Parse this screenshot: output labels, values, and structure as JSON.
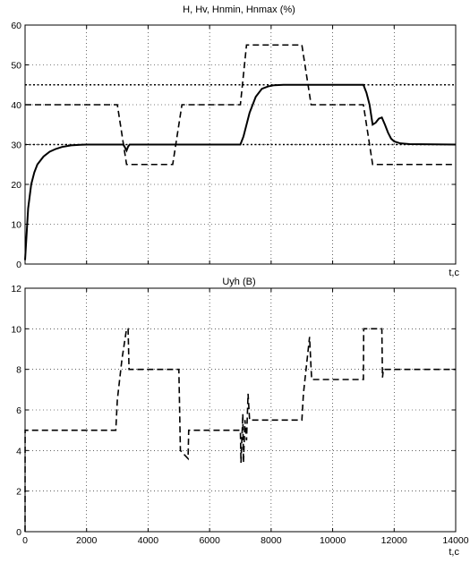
{
  "chart_data": [
    {
      "type": "line",
      "title": "H, Hv, Hnmin, Hnmax (%)",
      "xlabel": "t,c",
      "ylabel": "",
      "xlim": [
        0,
        14000
      ],
      "ylim": [
        0,
        60
      ],
      "xticks": [
        0,
        2000,
        4000,
        6000,
        8000,
        10000,
        12000,
        14000
      ],
      "yticks": [
        0,
        10,
        20,
        30,
        40,
        50,
        60
      ],
      "x_tick_labels_shown": false,
      "grid": true,
      "series": [
        {
          "style": "solid",
          "x": [
            0,
            100,
            200,
            300,
            400,
            600,
            800,
            1000,
            1200,
            1500,
            1800,
            2000,
            3000,
            3200,
            3300,
            3350,
            3400,
            5000,
            7000,
            7100,
            7300,
            7500,
            7700,
            7900,
            8100,
            8400,
            8700,
            9000,
            11000,
            11100,
            11200,
            11300,
            11400,
            11500,
            11600,
            11700,
            11800,
            11900,
            12000,
            12200,
            12500,
            14000
          ],
          "y": [
            1,
            14,
            20,
            23,
            25,
            27,
            28.2,
            28.9,
            29.4,
            29.8,
            29.95,
            30,
            30,
            30,
            28.5,
            29.5,
            30,
            30,
            30,
            32,
            38,
            42,
            44,
            44.6,
            44.9,
            45,
            45,
            45,
            45,
            43,
            40,
            35,
            35.5,
            36.5,
            36.8,
            35,
            33,
            31.5,
            30.8,
            30.3,
            30.1,
            30
          ]
        },
        {
          "style": "dashed",
          "x": [
            0,
            3000,
            3300,
            4800,
            5100,
            7000,
            7200,
            7500,
            9000,
            9300,
            11000,
            11300,
            14000
          ],
          "y": [
            40,
            40,
            25,
            25,
            40,
            40,
            55,
            55,
            55,
            40,
            40,
            25,
            25
          ]
        },
        {
          "style": "dotted",
          "x": [
            0,
            14000
          ],
          "y": [
            45,
            45
          ]
        },
        {
          "style": "dotted",
          "x": [
            0,
            14000
          ],
          "y": [
            30,
            30
          ]
        }
      ]
    },
    {
      "type": "line",
      "title": "Uyh (B)",
      "xlabel": "t,c",
      "ylabel": "",
      "xlim": [
        0,
        14000
      ],
      "ylim": [
        0,
        12
      ],
      "xticks": [
        0,
        2000,
        4000,
        6000,
        8000,
        10000,
        12000,
        14000
      ],
      "yticks": [
        0,
        2,
        4,
        6,
        8,
        10,
        12
      ],
      "x_tick_labels_shown": true,
      "grid": true,
      "series": [
        {
          "style": "dashed",
          "x": [
            0,
            1,
            2,
            2950,
            3000,
            3150,
            3300,
            3350,
            3380,
            3400,
            5000,
            5050,
            5300,
            5320,
            5350,
            7000,
            7020,
            7080,
            7100,
            7150,
            7200,
            7250,
            7300,
            7350,
            9000,
            9050,
            9250,
            9300,
            9320,
            9350,
            11000,
            11010,
            11600,
            11620,
            11650,
            14000
          ],
          "y": [
            0,
            3,
            5,
            5,
            6.5,
            8.5,
            10,
            10,
            8,
            8,
            8,
            4,
            3.6,
            5,
            5,
            5,
            3.4,
            5.8,
            3.4,
            5.5,
            4.5,
            6.8,
            5.5,
            5.5,
            5.5,
            6.8,
            9.6,
            8,
            7.5,
            7.5,
            7.5,
            10,
            10,
            7.6,
            8,
            8
          ]
        }
      ]
    }
  ]
}
